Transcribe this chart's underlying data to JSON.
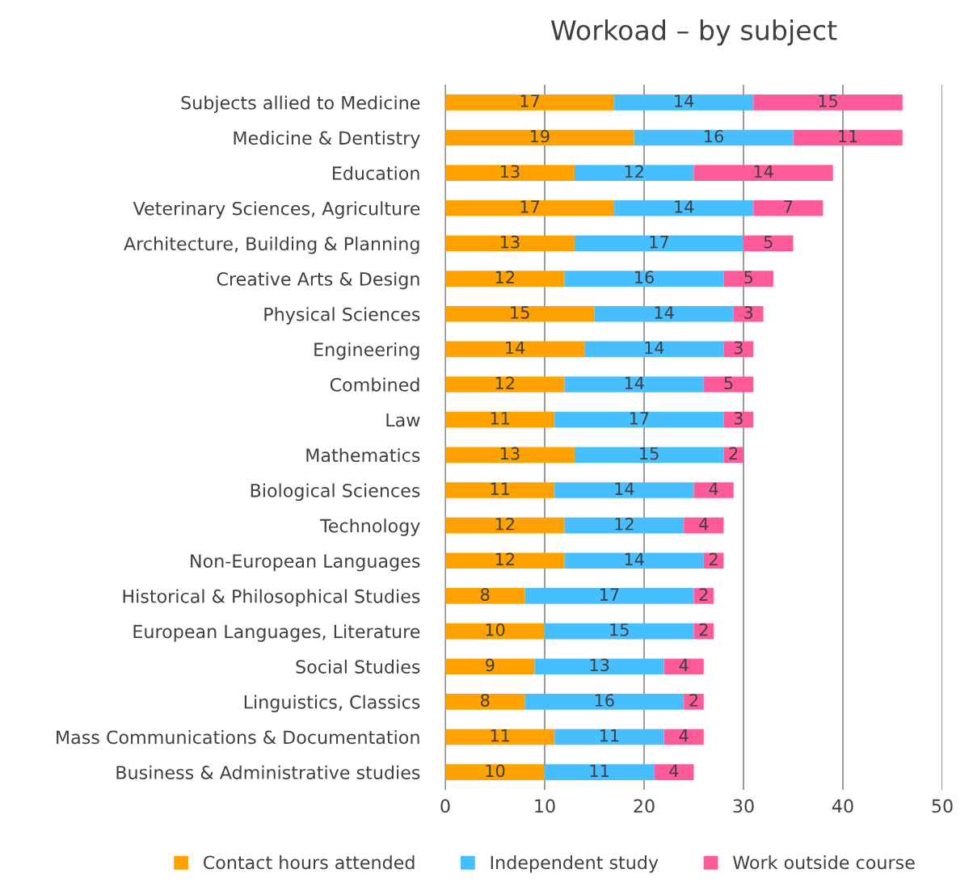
{
  "chart_data": {
    "type": "bar",
    "orientation": "horizontal",
    "stacked": true,
    "title": "Workoad – by subject",
    "categories": [
      "Subjects allied to Medicine",
      "Medicine & Dentistry",
      "Education",
      "Veterinary Sciences, Agriculture",
      "Architecture, Building & Planning",
      "Creative Arts & Design",
      "Physical Sciences",
      "Engineering",
      "Combined",
      "Law",
      "Mathematics",
      "Biological Sciences",
      "Technology",
      "Non-European Languages",
      "Historical & Philosophical Studies",
      "European Languages, Literature",
      "Social Studies",
      "Linguistics, Classics",
      "Mass Communications & Documentation",
      "Business & Administrative studies"
    ],
    "series": [
      {
        "name": "Contact hours attended",
        "color": "#ffa200",
        "values": [
          17,
          19,
          13,
          17,
          13,
          12,
          15,
          14,
          12,
          11,
          13,
          11,
          12,
          12,
          8,
          10,
          9,
          8,
          11,
          10
        ]
      },
      {
        "name": "Independent study",
        "color": "#47bfff",
        "values": [
          14,
          16,
          12,
          14,
          17,
          16,
          14,
          14,
          14,
          17,
          15,
          14,
          12,
          14,
          17,
          15,
          13,
          16,
          11,
          11
        ]
      },
      {
        "name": "Work outside course",
        "color": "#ff5a9a",
        "values": [
          15,
          11,
          14,
          7,
          5,
          5,
          3,
          3,
          5,
          3,
          2,
          4,
          4,
          2,
          2,
          2,
          4,
          2,
          4,
          4
        ]
      }
    ],
    "xlim": [
      0,
      50
    ],
    "xticks": [
      0,
      10,
      20,
      30,
      40,
      50
    ],
    "grid": "x",
    "legend": "bottom",
    "data_labels": true
  }
}
